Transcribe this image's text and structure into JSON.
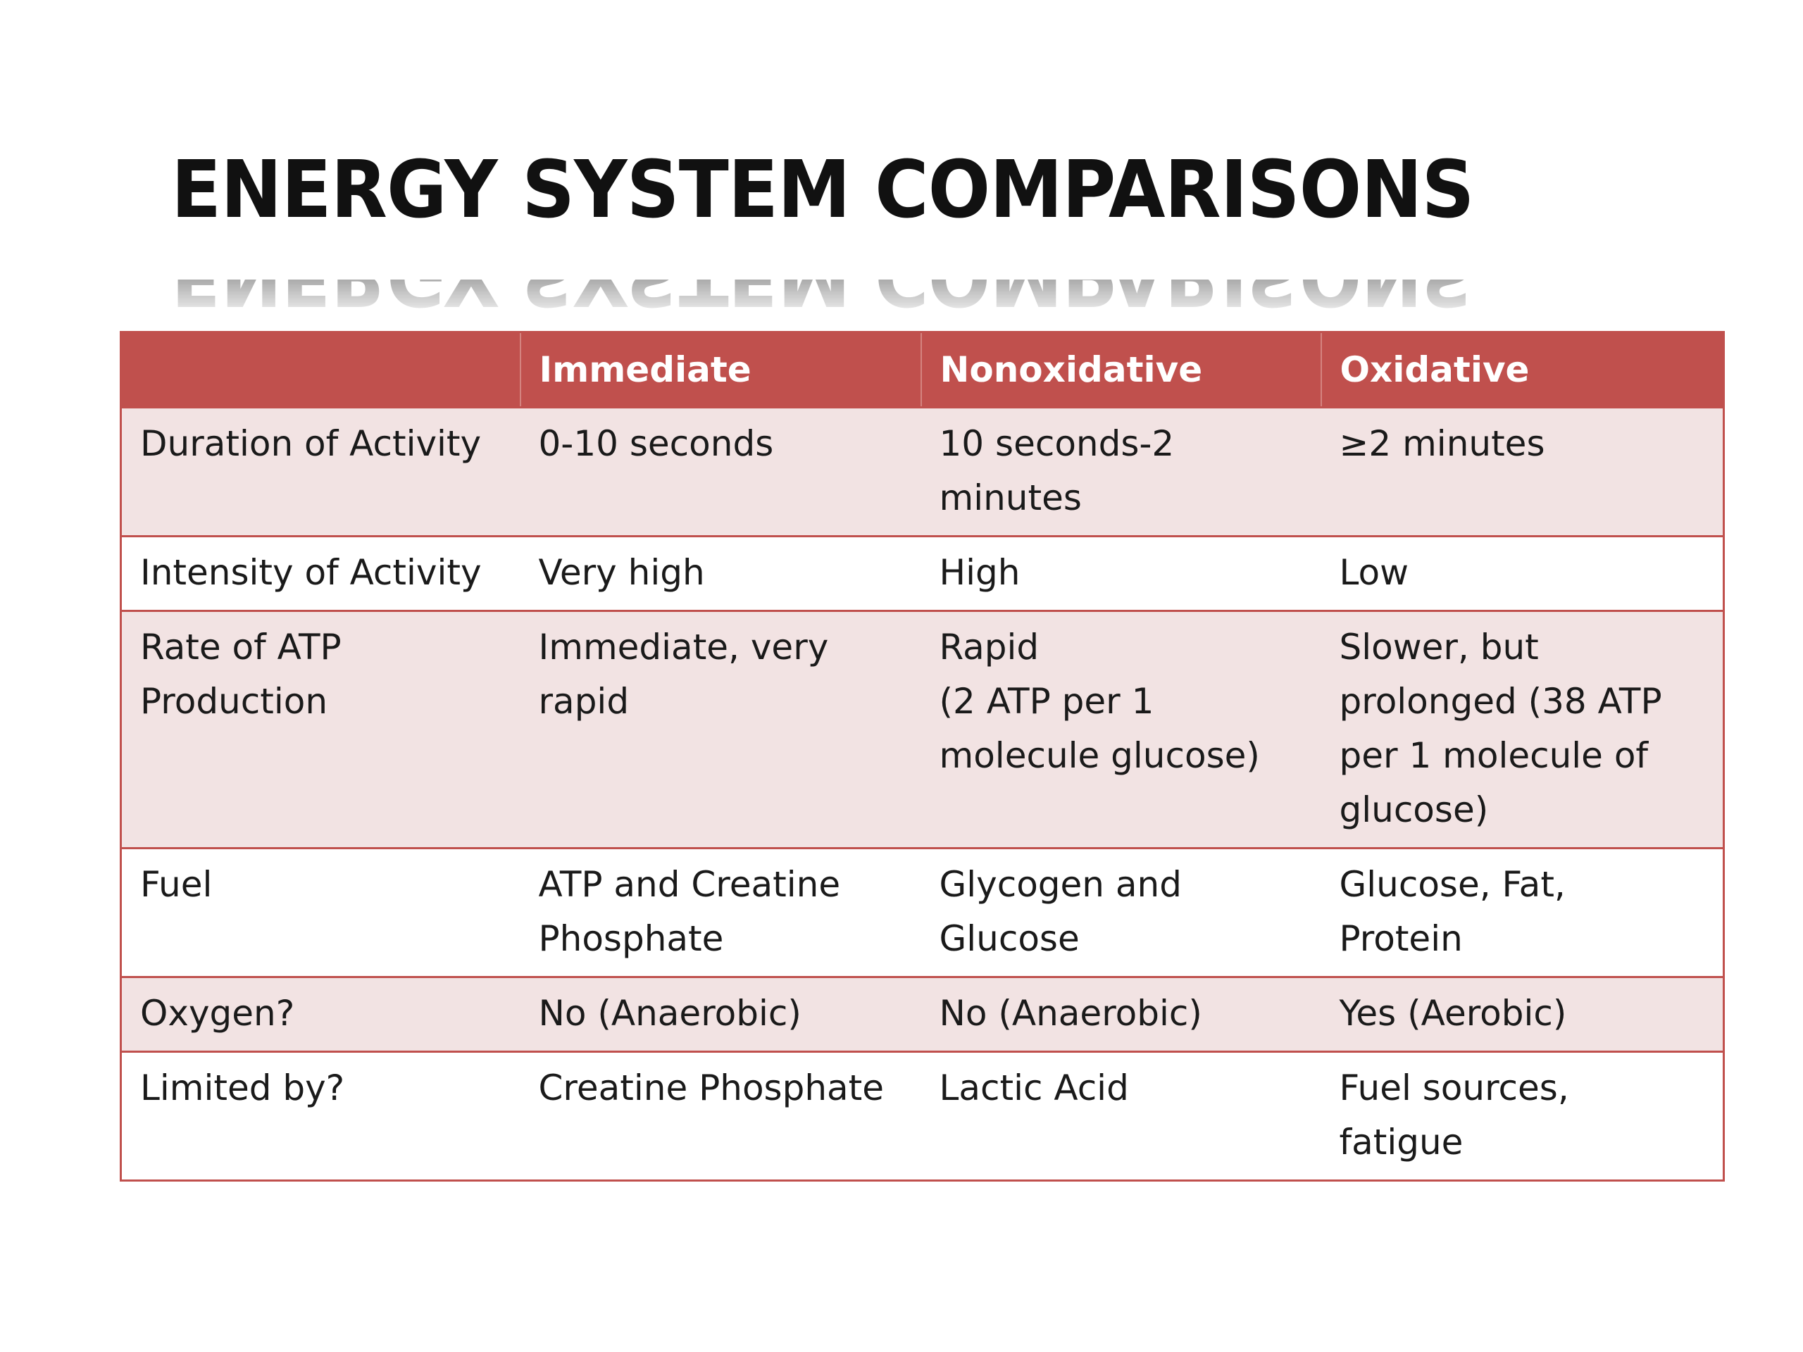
{
  "title": "ENERGY SYSTEM COMPARISONS",
  "colors": {
    "header_bg": "#c0504d",
    "header_text": "#ffffff",
    "band_row_bg": "#f2e3e3",
    "plain_row_bg": "#ffffff",
    "border": "#c0504d"
  },
  "table": {
    "headers": [
      "",
      "Immediate",
      "Nonoxidative",
      "Oxidative"
    ],
    "rows": [
      {
        "label": "Duration of Activity",
        "immediate": "0-10 seconds",
        "nonoxidative": "10 seconds-2\nminutes",
        "oxidative": "≥2 minutes"
      },
      {
        "label": "Intensity of Activity",
        "immediate": "Very high",
        "nonoxidative": "High",
        "oxidative": "Low"
      },
      {
        "label": "Rate of ATP\nProduction",
        "immediate": "Immediate, very\nrapid",
        "nonoxidative": "Rapid\n(2 ATP per 1\nmolecule glucose)",
        "oxidative": "Slower, but\nprolonged (38 ATP\nper 1 molecule of\nglucose)"
      },
      {
        "label": "Fuel",
        "immediate": "ATP and Creatine\nPhosphate",
        "nonoxidative": "Glycogen and\nGlucose",
        "oxidative": "Glucose, Fat,\nProtein"
      },
      {
        "label": "Oxygen?",
        "immediate": "No (Anaerobic)",
        "nonoxidative": "No (Anaerobic)",
        "oxidative": "Yes (Aerobic)"
      },
      {
        "label": "Limited by?",
        "immediate": "Creatine Phosphate",
        "nonoxidative": "Lactic Acid",
        "oxidative": "Fuel sources,\nfatigue"
      }
    ]
  }
}
